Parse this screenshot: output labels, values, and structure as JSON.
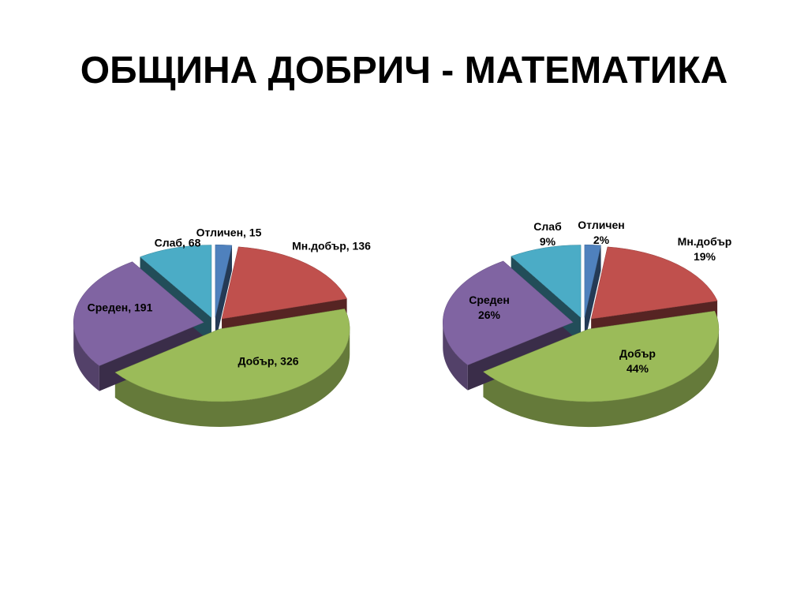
{
  "title": "ОБЩИНА ДОБРИЧ - МАТЕМАТИКА",
  "chart_data": [
    {
      "type": "pie3d",
      "categories": [
        "Отличен",
        "Мн.добър",
        "Добър",
        "Среден",
        "Слаб"
      ],
      "values": [
        15,
        136,
        326,
        191,
        68
      ],
      "value_labels": [
        "Отличен, 15",
        "Мн.добър, 136",
        "Добър, 326",
        "Среден, 191",
        "Слаб, 68"
      ],
      "colors": [
        "#4f81bd",
        "#c0504d",
        "#9bbb59",
        "#8064a2",
        "#4bacc6"
      ]
    },
    {
      "type": "pie3d",
      "categories": [
        "Отличен",
        "Мн.добър",
        "Добър",
        "Среден",
        "Слаб"
      ],
      "values": [
        2,
        19,
        44,
        26,
        9
      ],
      "value_labels": [
        "2%",
        "19%",
        "44%",
        "26%",
        "9%"
      ],
      "colors": [
        "#4f81bd",
        "#c0504d",
        "#9bbb59",
        "#8064a2",
        "#4bacc6"
      ]
    }
  ]
}
